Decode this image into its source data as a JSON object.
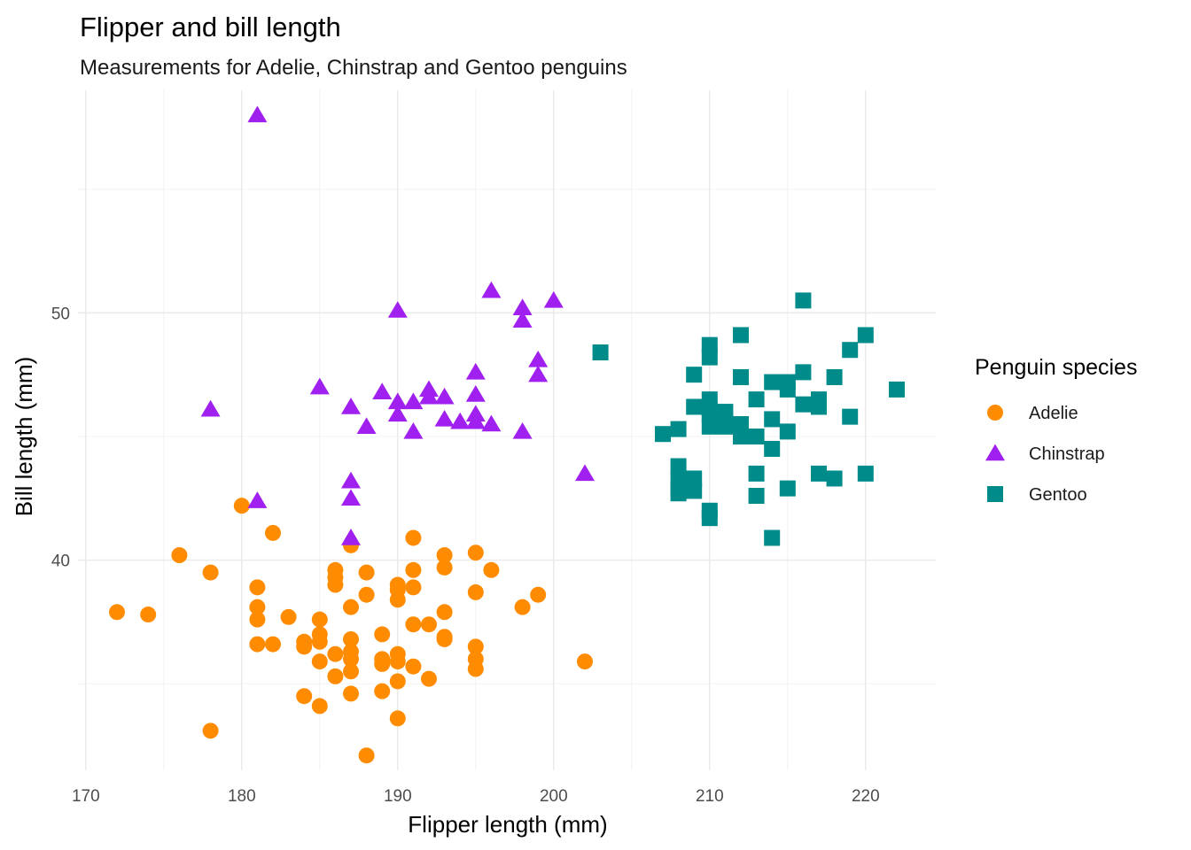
{
  "colors": {
    "Adelie": "#ff8c00",
    "Chinstrap": "#a020f0",
    "Gentoo": "#008b8b"
  },
  "chart_data": {
    "type": "scatter",
    "title": "Flipper and bill length",
    "subtitle": "Measurements for Adelie, Chinstrap and Gentoo penguins",
    "xlabel": "Flipper length (mm)",
    "ylabel": "Bill length (mm)",
    "xlim": [
      169.5,
      224.5
    ],
    "ylim": [
      31.5,
      59.0
    ],
    "xticks": [
      170,
      180,
      190,
      200,
      210,
      220
    ],
    "yticks": [
      40,
      50
    ],
    "grid": true,
    "legend_title": "Penguin species",
    "legend_position": "right",
    "series": [
      {
        "name": "Adelie",
        "shape": "circle",
        "points": [
          [
            172,
            37.9
          ],
          [
            174,
            37.8
          ],
          [
            176,
            40.2
          ],
          [
            178,
            39.5
          ],
          [
            178,
            33.1
          ],
          [
            180,
            42.2
          ],
          [
            181,
            38.9
          ],
          [
            181,
            38.1
          ],
          [
            181,
            37.6
          ],
          [
            181,
            36.6
          ],
          [
            182,
            41.1
          ],
          [
            182,
            36.6
          ],
          [
            183,
            37.7
          ],
          [
            184,
            36.7
          ],
          [
            184,
            36.5
          ],
          [
            184,
            34.5
          ],
          [
            185,
            37.6
          ],
          [
            185,
            37.0
          ],
          [
            185,
            36.7
          ],
          [
            185,
            35.9
          ],
          [
            185,
            34.1
          ],
          [
            186,
            39.6
          ],
          [
            186,
            39.3
          ],
          [
            186,
            39.0
          ],
          [
            186,
            36.2
          ],
          [
            186,
            35.3
          ],
          [
            187,
            40.6
          ],
          [
            187,
            38.1
          ],
          [
            187,
            36.8
          ],
          [
            187,
            36.3
          ],
          [
            187,
            36.0
          ],
          [
            187,
            35.5
          ],
          [
            187,
            34.6
          ],
          [
            188,
            39.5
          ],
          [
            188,
            38.6
          ],
          [
            188,
            32.1
          ],
          [
            189,
            37.0
          ],
          [
            189,
            36.0
          ],
          [
            189,
            35.8
          ],
          [
            189,
            34.7
          ],
          [
            190,
            39.0
          ],
          [
            190,
            38.8
          ],
          [
            190,
            38.4
          ],
          [
            190,
            36.2
          ],
          [
            190,
            35.9
          ],
          [
            190,
            35.1
          ],
          [
            190,
            33.6
          ],
          [
            191,
            40.9
          ],
          [
            191,
            39.6
          ],
          [
            191,
            38.9
          ],
          [
            191,
            37.4
          ],
          [
            191,
            35.7
          ],
          [
            192,
            37.4
          ],
          [
            192,
            35.2
          ],
          [
            193,
            40.2
          ],
          [
            193,
            39.7
          ],
          [
            193,
            37.9
          ],
          [
            193,
            36.9
          ],
          [
            193,
            36.8
          ],
          [
            195,
            40.3
          ],
          [
            195,
            38.7
          ],
          [
            195,
            36.5
          ],
          [
            195,
            36.0
          ],
          [
            195,
            35.6
          ],
          [
            196,
            39.6
          ],
          [
            198,
            38.1
          ],
          [
            199,
            38.6
          ],
          [
            202,
            35.9
          ]
        ]
      },
      {
        "name": "Chinstrap",
        "shape": "triangle",
        "points": [
          [
            178,
            46.1
          ],
          [
            181,
            58.0
          ],
          [
            181,
            42.4
          ],
          [
            185,
            47.0
          ],
          [
            187,
            46.2
          ],
          [
            187,
            43.2
          ],
          [
            187,
            42.5
          ],
          [
            187,
            40.9
          ],
          [
            188,
            45.4
          ],
          [
            189,
            46.8
          ],
          [
            190,
            50.1
          ],
          [
            190,
            46.4
          ],
          [
            190,
            45.9
          ],
          [
            191,
            46.4
          ],
          [
            191,
            45.2
          ],
          [
            192,
            46.9
          ],
          [
            192,
            46.6
          ],
          [
            193,
            46.6
          ],
          [
            193,
            45.7
          ],
          [
            194,
            45.6
          ],
          [
            195,
            47.6
          ],
          [
            195,
            46.7
          ],
          [
            195,
            45.9
          ],
          [
            195,
            45.6
          ],
          [
            196,
            50.9
          ],
          [
            196,
            45.5
          ],
          [
            198,
            50.2
          ],
          [
            198,
            49.7
          ],
          [
            198,
            45.2
          ],
          [
            199,
            48.1
          ],
          [
            199,
            47.5
          ],
          [
            200,
            50.5
          ],
          [
            202,
            43.5
          ]
        ]
      },
      {
        "name": "Gentoo",
        "shape": "square",
        "points": [
          [
            203,
            48.4
          ],
          [
            207,
            45.1
          ],
          [
            208,
            45.3
          ],
          [
            208,
            43.8
          ],
          [
            208,
            43.3
          ],
          [
            208,
            42.9
          ],
          [
            208,
            42.7
          ],
          [
            209,
            47.5
          ],
          [
            209,
            46.2
          ],
          [
            209,
            43.3
          ],
          [
            209,
            42.8
          ],
          [
            210,
            48.7
          ],
          [
            210,
            48.2
          ],
          [
            210,
            46.5
          ],
          [
            210,
            46.1
          ],
          [
            210,
            45.9
          ],
          [
            210,
            45.4
          ],
          [
            210,
            42.0
          ],
          [
            210,
            41.7
          ],
          [
            211,
            46.0
          ],
          [
            211,
            45.7
          ],
          [
            211,
            45.4
          ],
          [
            212,
            49.1
          ],
          [
            212,
            47.4
          ],
          [
            212,
            45.5
          ],
          [
            212,
            45.0
          ],
          [
            213,
            46.5
          ],
          [
            213,
            45.0
          ],
          [
            213,
            43.5
          ],
          [
            213,
            42.6
          ],
          [
            214,
            47.2
          ],
          [
            214,
            45.7
          ],
          [
            214,
            44.5
          ],
          [
            214,
            40.9
          ],
          [
            215,
            47.2
          ],
          [
            215,
            46.9
          ],
          [
            215,
            45.2
          ],
          [
            215,
            42.9
          ],
          [
            216,
            50.5
          ],
          [
            216,
            47.6
          ],
          [
            216,
            46.3
          ],
          [
            217,
            46.5
          ],
          [
            217,
            46.2
          ],
          [
            217,
            43.5
          ],
          [
            218,
            47.4
          ],
          [
            218,
            43.3
          ],
          [
            219,
            48.5
          ],
          [
            219,
            45.8
          ],
          [
            220,
            49.1
          ],
          [
            220,
            43.5
          ],
          [
            222,
            46.9
          ]
        ]
      }
    ]
  }
}
